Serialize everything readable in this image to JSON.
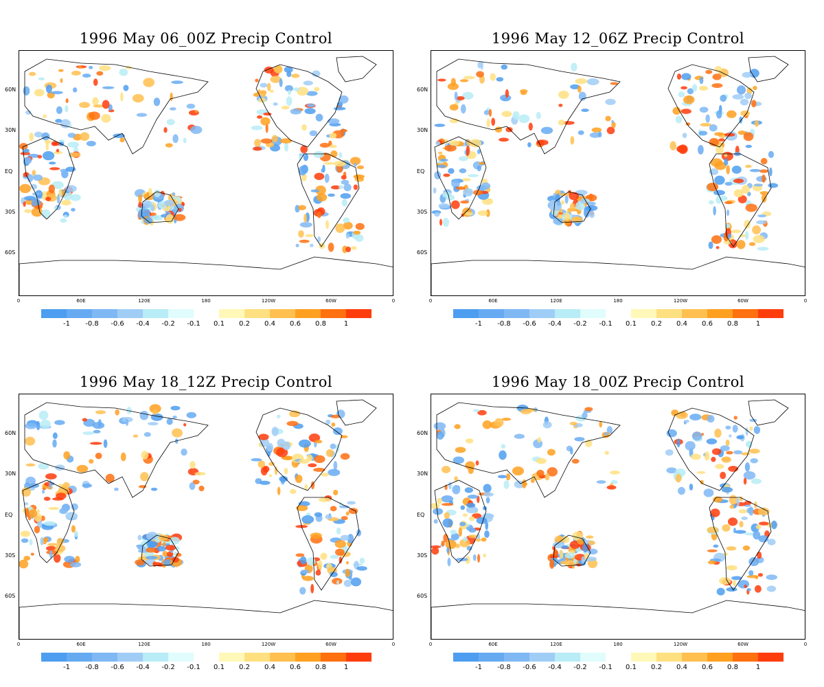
{
  "panels": [
    {
      "title": "1996 May 06_00Z Precip Control"
    },
    {
      "title": "1996 May 12_06Z Precip Control"
    },
    {
      "title": "1996 May 18_12Z Precip Control"
    },
    {
      "title": "1996 May 18_00Z Precip Control"
    }
  ],
  "axes": {
    "lat_labels": [
      "60N",
      "30N",
      "EQ",
      "30S",
      "60S"
    ],
    "lon_labels": [
      "0",
      "60E",
      "120E",
      "180",
      "120W",
      "60W",
      "0"
    ]
  },
  "colorbar": {
    "colors": [
      "#4d9ef0",
      "#66aaf2",
      "#80b8f4",
      "#a0cdf6",
      "#b8ecf6",
      "#e0fcfc",
      "#ffffff",
      "#fff8b8",
      "#ffe080",
      "#ffc050",
      "#ffa020",
      "#ff7010",
      "#ff3c0c"
    ],
    "tick_labels": [
      "-1",
      "-0.8",
      "-0.6",
      "-0.4",
      "-0.2",
      "-0.1",
      "0.1",
      "0.2",
      "0.4",
      "0.6",
      "0.8",
      "1"
    ]
  },
  "colors": {
    "strong_positive": "#ff3c0c",
    "strong_negative": "#4d9ef0"
  }
}
